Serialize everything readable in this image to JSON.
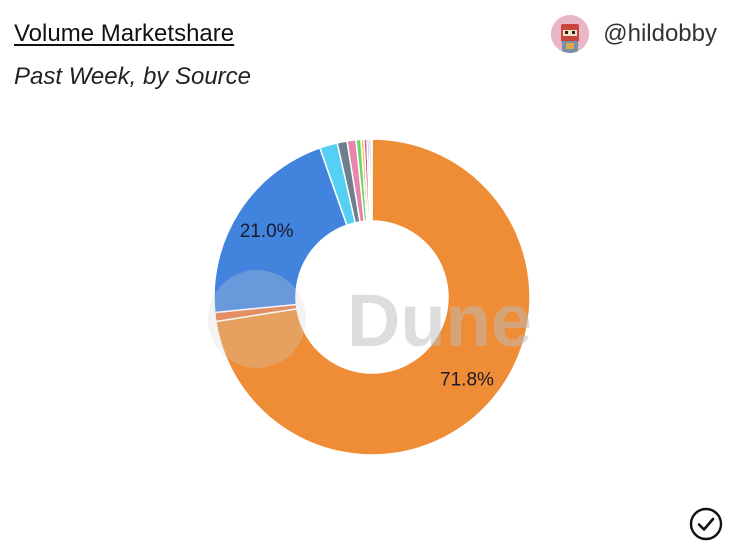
{
  "header": {
    "title": "Volume Marketshare",
    "subtitle": "Past Week, by Source",
    "author": "@hildobby",
    "watermark": "Dune"
  },
  "chart_data": {
    "type": "pie",
    "donut": true,
    "title": "Volume Marketshare",
    "subtitle": "Past Week, by Source",
    "slices": [
      {
        "value": 71.8,
        "label": "71.8%",
        "color": "#ee8d35"
      },
      {
        "value": 0.9,
        "label": "",
        "color": "#e8763a"
      },
      {
        "value": 21.0,
        "label": "21.0%",
        "color": "#4183dd"
      },
      {
        "value": 1.8,
        "label": "",
        "color": "#55d0f5"
      },
      {
        "value": 1.0,
        "label": "",
        "color": "#6e7f8d"
      },
      {
        "value": 0.9,
        "label": "",
        "color": "#e784ab"
      },
      {
        "value": 0.5,
        "label": "",
        "color": "#6cd56a"
      },
      {
        "value": 0.3,
        "label": "",
        "color": "#f0c04a"
      },
      {
        "value": 0.3,
        "label": "",
        "color": "#c95b8a"
      },
      {
        "value": 0.2,
        "label": "",
        "color": "#8c6ad8"
      },
      {
        "value": 0.2,
        "label": "",
        "color": "#3aa0a0"
      },
      {
        "value": 0.1,
        "label": "",
        "color": "#d65050"
      }
    ]
  }
}
